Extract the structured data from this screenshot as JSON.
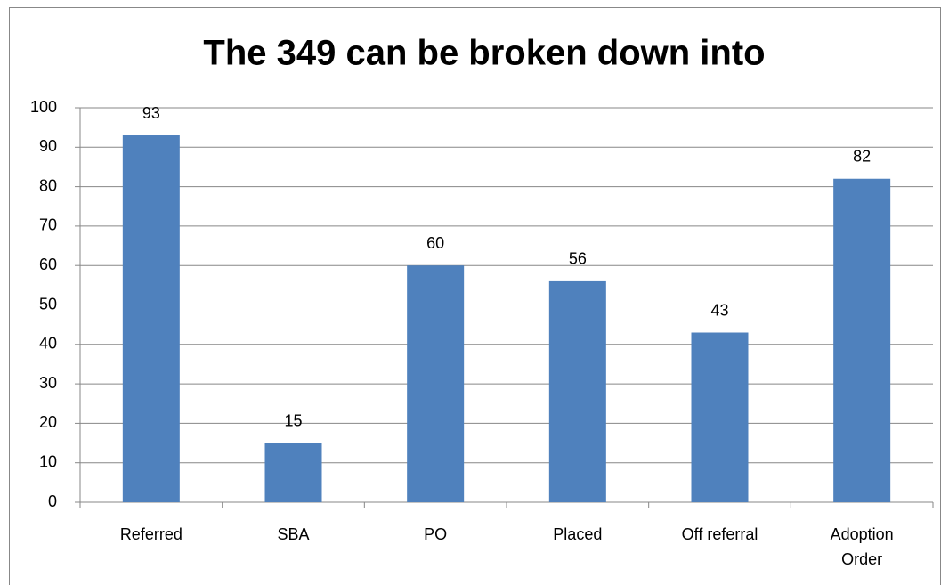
{
  "chart_data": {
    "type": "bar",
    "title": "The 349 can be broken down into",
    "categories": [
      "Referred",
      "SBA",
      "PO",
      "Placed",
      "Off referral",
      "Adoption Order"
    ],
    "values": [
      93,
      15,
      60,
      56,
      43,
      82
    ],
    "color": "#4f81bd",
    "ylim": [
      0,
      100
    ],
    "yticks": [
      0,
      10,
      20,
      30,
      40,
      50,
      60,
      70,
      80,
      90,
      100
    ],
    "grid": true
  }
}
